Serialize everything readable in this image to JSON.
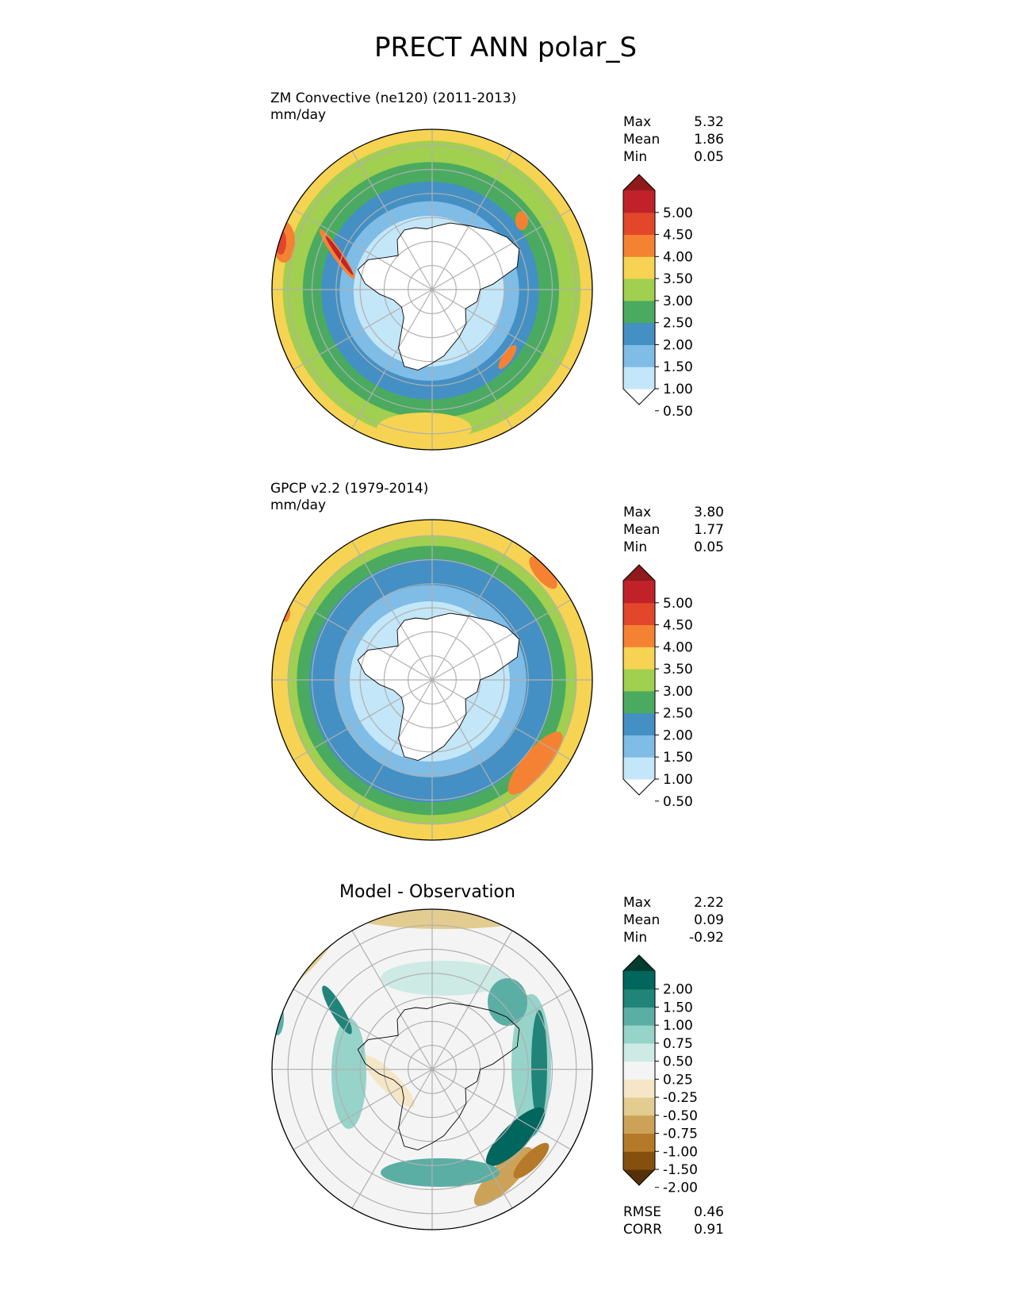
{
  "title": "PRECT ANN polar_S",
  "panels": [
    {
      "id": "test",
      "label_line1": "ZM Convective (ne120) (2011-2013)",
      "label_line2": "mm/day",
      "stats": [
        {
          "name": "Max",
          "value": "5.32"
        },
        {
          "name": "Mean",
          "value": "1.86"
        },
        {
          "name": "Min",
          "value": "0.05"
        }
      ],
      "colorbar_ticks": [
        "5.00",
        "4.50",
        "4.00",
        "3.50",
        "3.00",
        "2.50",
        "2.00",
        "1.50",
        "1.00",
        "0.50"
      ],
      "colorbar_colors": [
        "#ffffff",
        "#c3e6f8",
        "#7fbce6",
        "#4490c4",
        "#4aab60",
        "#a1cf4f",
        "#f6d352",
        "#f58232",
        "#e2462b",
        "#c1222a",
        "#8f1a1b"
      ]
    },
    {
      "id": "ref",
      "label_line1": "GPCP v2.2 (1979-2014)",
      "label_line2": "mm/day",
      "stats": [
        {
          "name": "Max",
          "value": "3.80"
        },
        {
          "name": "Mean",
          "value": "1.77"
        },
        {
          "name": "Min",
          "value": "0.05"
        }
      ],
      "colorbar_ticks": [
        "5.00",
        "4.50",
        "4.00",
        "3.50",
        "3.00",
        "2.50",
        "2.00",
        "1.50",
        "1.00",
        "0.50"
      ],
      "colorbar_colors": [
        "#ffffff",
        "#c3e6f8",
        "#7fbce6",
        "#4490c4",
        "#4aab60",
        "#a1cf4f",
        "#f6d352",
        "#f58232",
        "#e2462b",
        "#c1222a",
        "#8f1a1b"
      ]
    },
    {
      "id": "diff",
      "title": "Model - Observation",
      "stats": [
        {
          "name": "Max",
          "value": "2.22"
        },
        {
          "name": "Mean",
          "value": "0.09"
        },
        {
          "name": "Min",
          "value": "-0.92"
        }
      ],
      "bottom_stats": [
        {
          "name": "RMSE",
          "value": "0.46"
        },
        {
          "name": "CORR",
          "value": "0.91"
        }
      ],
      "colorbar_ticks": [
        "2.00",
        "1.50",
        "1.00",
        "0.75",
        "0.50",
        "0.25",
        "-0.25",
        "-0.50",
        "-0.75",
        "-1.00",
        "-1.50",
        "-2.00"
      ],
      "colorbar_colors": [
        "#563008",
        "#85500d",
        "#b57a29",
        "#cca258",
        "#e2cc8f",
        "#f4e6c6",
        "#f4f4f4",
        "#cdeae5",
        "#96d3c9",
        "#5baea4",
        "#218479",
        "#01665e",
        "#013c30"
      ]
    }
  ],
  "chart_data": [
    {
      "type": "heatmap",
      "projection": "south polar stereographic",
      "title": "ZM Convective (ne120) (2011-2013)",
      "units": "mm/day",
      "levels": [
        0.5,
        1.0,
        1.5,
        2.0,
        2.5,
        3.0,
        3.5,
        4.0,
        4.5,
        5.0
      ],
      "max": 5.32,
      "mean": 1.86,
      "min": 0.05
    },
    {
      "type": "heatmap",
      "projection": "south polar stereographic",
      "title": "GPCP v2.2 (1979-2014)",
      "units": "mm/day",
      "levels": [
        0.5,
        1.0,
        1.5,
        2.0,
        2.5,
        3.0,
        3.5,
        4.0,
        4.5,
        5.0
      ],
      "max": 3.8,
      "mean": 1.77,
      "min": 0.05
    },
    {
      "type": "heatmap",
      "projection": "south polar stereographic",
      "title": "Model - Observation",
      "levels": [
        -2.0,
        -1.5,
        -1.0,
        -0.75,
        -0.5,
        -0.25,
        0.25,
        0.5,
        0.75,
        1.0,
        1.5,
        2.0
      ],
      "max": 2.22,
      "mean": 0.09,
      "min": -0.92,
      "rmse": 0.46,
      "corr": 0.91
    }
  ]
}
